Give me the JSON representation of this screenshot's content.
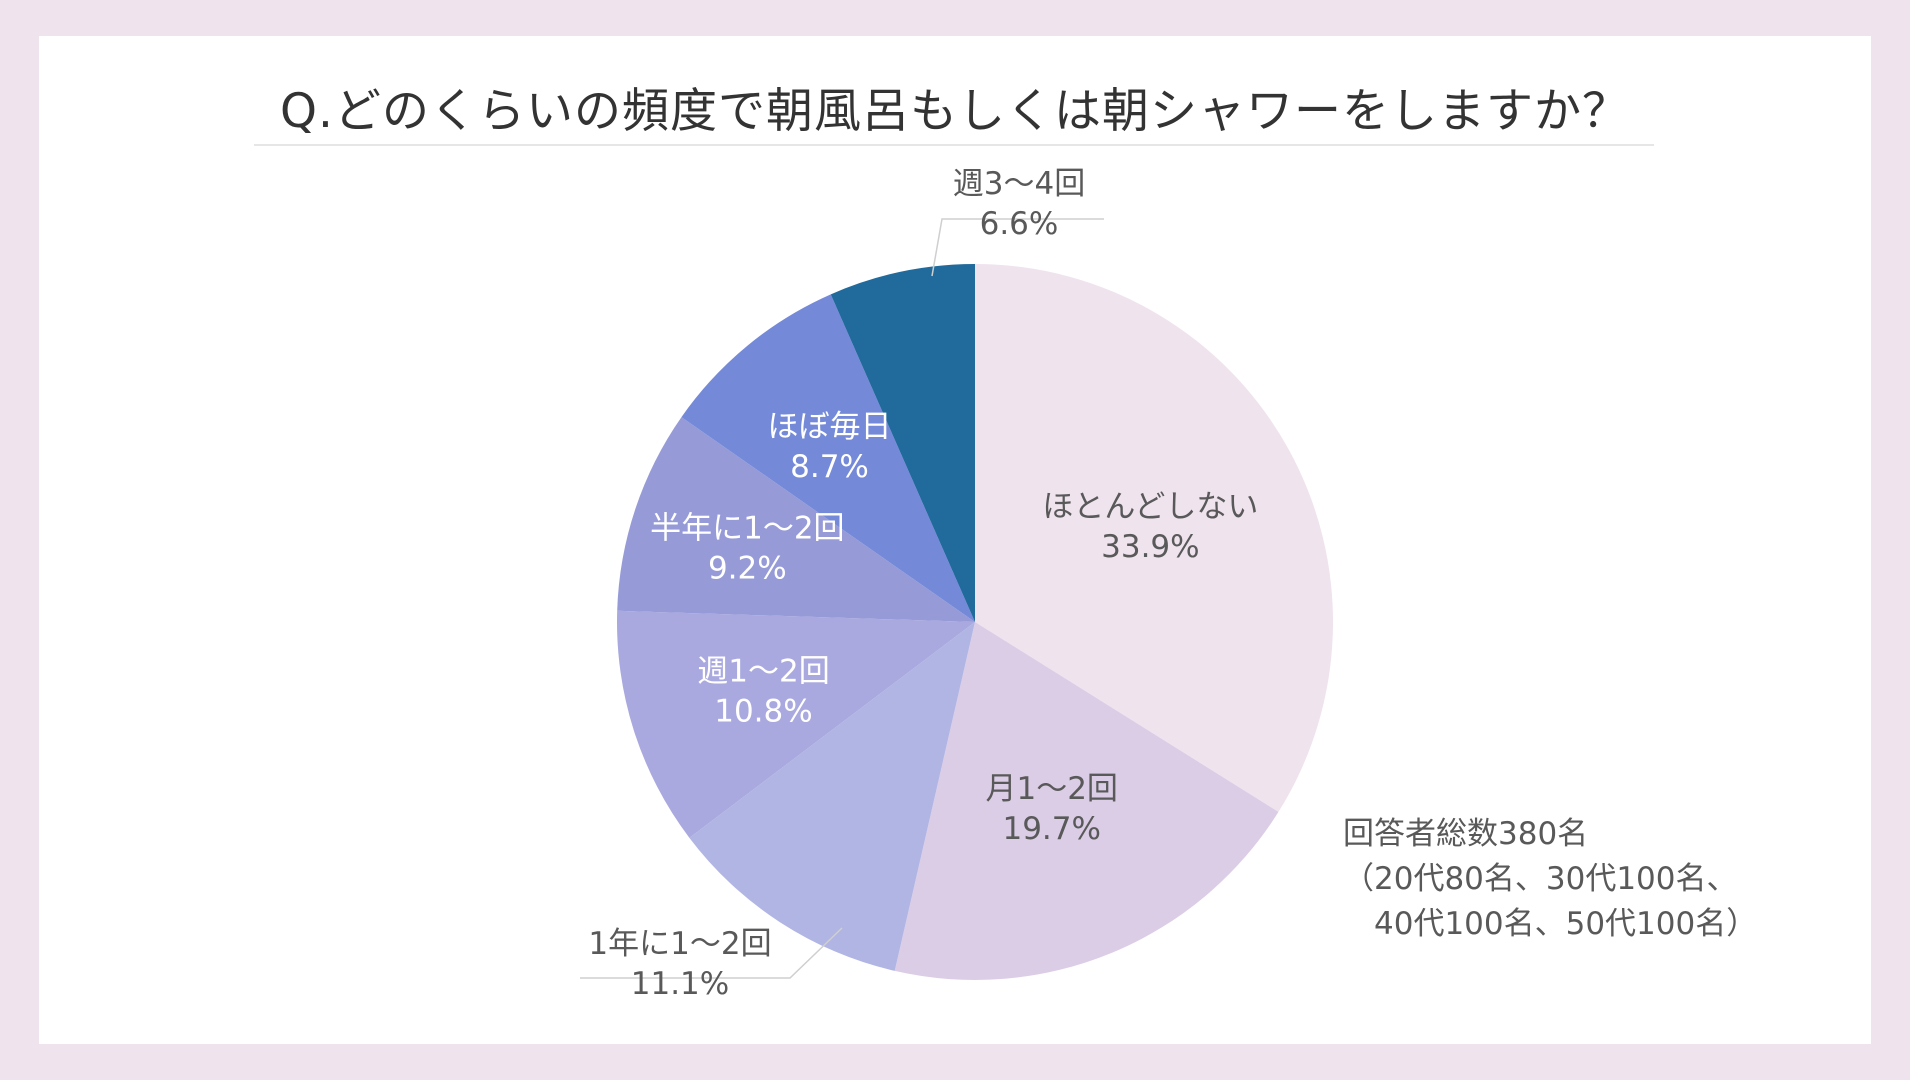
{
  "title": "Q.どのくらいの頻度で朝風呂もしくは朝シャワーをしますか？",
  "note": {
    "line1": "回答者総数380名",
    "line2": "（20代80名、30代100名、",
    "line3": "　40代100名、50代100名）"
  },
  "chart_data": {
    "type": "pie",
    "title": "Q.どのくらいの頻度で朝風呂もしくは朝シャワーをしますか？",
    "start_angle": "12 o'clock",
    "direction": "clockwise",
    "slices": [
      {
        "label": "ほとんどしない",
        "value": 33.9,
        "display": "33.9%",
        "color": "#efe3ee",
        "text_color": "#595959"
      },
      {
        "label": "月1〜2回",
        "value": 19.7,
        "display": "19.7%",
        "color": "#dbcde6",
        "text_color": "#595959"
      },
      {
        "label": "1年に1〜2回",
        "value": 11.1,
        "display": "11.1%",
        "color": "#b1b5e3",
        "text_color": "#595959"
      },
      {
        "label": "週1〜2回",
        "value": 10.8,
        "display": "10.8%",
        "color": "#a9a9e0",
        "text_color": "#ffffff"
      },
      {
        "label": "半年に1〜2回",
        "value": 9.2,
        "display": "9.2%",
        "color": "#969bd8",
        "text_color": "#ffffff"
      },
      {
        "label": "ほぼ毎日",
        "value": 8.7,
        "display": "8.7%",
        "color": "#7489d8",
        "text_color": "#ffffff"
      },
      {
        "label": "週3〜4回",
        "value": 6.6,
        "display": "6.6%",
        "color": "#216a9c",
        "text_color": "#595959"
      }
    ]
  }
}
